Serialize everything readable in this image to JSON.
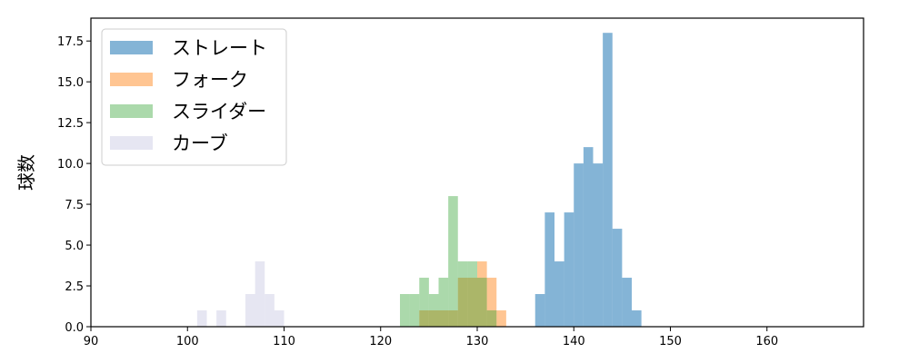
{
  "chart_data": {
    "type": "bar",
    "ylabel": "球数",
    "xlabel": "",
    "xlim": [
      90,
      170
    ],
    "ylim": [
      0,
      18.9
    ],
    "x_ticks": [
      90,
      100,
      110,
      120,
      130,
      140,
      150,
      160
    ],
    "y_ticks": [
      0.0,
      2.5,
      5.0,
      7.5,
      10.0,
      12.5,
      15.0,
      17.5
    ],
    "x_tick_labels": [
      "90",
      "100",
      "110",
      "120",
      "130",
      "140",
      "150",
      "160"
    ],
    "y_tick_labels": [
      "0.0",
      "2.5",
      "5.0",
      "7.5",
      "10.0",
      "12.5",
      "15.0",
      "17.5"
    ],
    "legend_position": "top-left",
    "bin_width": 1,
    "series": [
      {
        "name": "ストレート",
        "color": "#1f77b4",
        "opacity": 0.55,
        "bins": [
          [
            136,
            2
          ],
          [
            137,
            7
          ],
          [
            138,
            4
          ],
          [
            139,
            7
          ],
          [
            140,
            10
          ],
          [
            141,
            11
          ],
          [
            142,
            10
          ],
          [
            143,
            18
          ],
          [
            144,
            6
          ],
          [
            145,
            3
          ],
          [
            146,
            1
          ]
        ]
      },
      {
        "name": "フォーク",
        "color": "#ff7f0e",
        "opacity": 0.45,
        "bins": [
          [
            124,
            1
          ],
          [
            125,
            1
          ],
          [
            126,
            1
          ],
          [
            127,
            1
          ],
          [
            128,
            3
          ],
          [
            129,
            3
          ],
          [
            130,
            4
          ],
          [
            131,
            3
          ],
          [
            132,
            1
          ]
        ]
      },
      {
        "name": "スライダー",
        "color": "#2ca02c",
        "opacity": 0.4,
        "bins": [
          [
            122,
            2
          ],
          [
            123,
            2
          ],
          [
            124,
            3
          ],
          [
            125,
            2
          ],
          [
            126,
            3
          ],
          [
            127,
            8
          ],
          [
            128,
            4
          ],
          [
            129,
            4
          ],
          [
            130,
            3
          ],
          [
            131,
            1
          ]
        ]
      },
      {
        "name": "カーブ",
        "color": "#b8b8d9",
        "opacity": 0.35,
        "bins": [
          [
            101,
            1
          ],
          [
            103,
            1
          ],
          [
            106,
            2
          ],
          [
            107,
            4
          ],
          [
            108,
            2
          ],
          [
            109,
            1
          ]
        ]
      }
    ]
  }
}
